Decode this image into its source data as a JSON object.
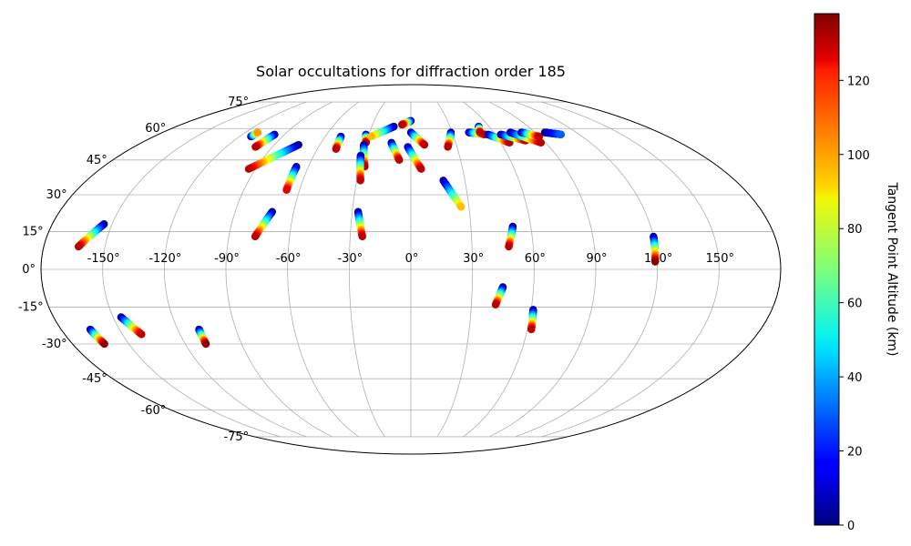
{
  "chart_data": {
    "type": "scatter",
    "projection": "mollweide",
    "title": "Solar occultations for diffraction order 185",
    "xlabel": "",
    "ylabel": "",
    "x_tick_labels": [
      "-150°",
      "-120°",
      "-90°",
      "-60°",
      "-30°",
      "0°",
      "30°",
      "60°",
      "90°",
      "120°",
      "150°"
    ],
    "y_tick_labels": [
      "-75°",
      "-60°",
      "-45°",
      "-30°",
      "-15°",
      "0°",
      "15°",
      "30°",
      "45°",
      "60°",
      "75°"
    ],
    "x_ticks": [
      -150,
      -120,
      -90,
      -60,
      -30,
      0,
      30,
      60,
      90,
      120,
      150
    ],
    "y_ticks": [
      -75,
      -60,
      -45,
      -30,
      -15,
      0,
      15,
      30,
      45,
      60,
      75
    ],
    "xlim": [
      -180,
      180
    ],
    "ylim": [
      -90,
      90
    ],
    "grid": true,
    "colormap": "jet",
    "colorbar": {
      "label": "Tangent Point Altitude (km)",
      "range": [
        0,
        138
      ],
      "tick_values": [
        0,
        20,
        40,
        60,
        80,
        100,
        120
      ],
      "tick_labels": [
        "0",
        "20",
        "40",
        "60",
        "80",
        "100",
        "120"
      ]
    },
    "note": "Each occultation: points from (lon0, lat0) at 0 km altitude to (lon1, lat1) at max_alt km",
    "occultations": [
      {
        "lon0": -154,
        "lat0": 18,
        "lon1": -163,
        "lat1": 9,
        "max_alt": 130
      },
      {
        "lon0": -146,
        "lat0": -19,
        "lon1": -140,
        "lat1": -26,
        "max_alt": 130
      },
      {
        "lon0": -165,
        "lat0": -24,
        "lon1": -163,
        "lat1": -30,
        "max_alt": 136
      },
      {
        "lon0": -109,
        "lat0": -24,
        "lon1": -109,
        "lat1": -30,
        "max_alt": 136
      },
      {
        "lon0": -97,
        "lat0": 57,
        "lon1": -101,
        "lat1": 51,
        "max_alt": 130
      },
      {
        "lon0": -74,
        "lat0": 52,
        "lon1": -94,
        "lat1": 41,
        "max_alt": 130
      },
      {
        "lon0": -67,
        "lat0": 42,
        "lon1": -67,
        "lat1": 32,
        "max_alt": 125
      },
      {
        "lon0": -71,
        "lat0": 23,
        "lon1": -77,
        "lat1": 13,
        "max_alt": 130
      },
      {
        "lon0": -49,
        "lat0": 56,
        "lon1": -48,
        "lat1": 50,
        "max_alt": 130
      },
      {
        "lon0": -32,
        "lat0": 57,
        "lon1": -30,
        "lat1": 53,
        "max_alt": 130
      },
      {
        "lon0": -31,
        "lat0": 52,
        "lon1": -27,
        "lat1": 42,
        "max_alt": 130
      },
      {
        "lon0": -31,
        "lat0": 47,
        "lon1": -28,
        "lat1": 36,
        "max_alt": 130
      },
      {
        "lon0": -27,
        "lat0": 23,
        "lon1": -24,
        "lat1": 13,
        "max_alt": 130
      },
      {
        "lon0": -13,
        "lat0": 61,
        "lon1": -28,
        "lat1": 56,
        "max_alt": 95
      },
      {
        "lon0": -13,
        "lat0": 53,
        "lon1": -7,
        "lat1": 45,
        "max_alt": 130
      },
      {
        "lon0": 0,
        "lat0": 64,
        "lon1": -7,
        "lat1": 62,
        "max_alt": 130
      },
      {
        "lon0": -2,
        "lat0": 51,
        "lon1": 6,
        "lat1": 41,
        "max_alt": 130
      },
      {
        "lon0": 0,
        "lat0": 58,
        "lon1": 9,
        "lat1": 52,
        "max_alt": 130
      },
      {
        "lon0": 18,
        "lat0": 36,
        "lon1": 26,
        "lat1": 25,
        "max_alt": 95
      },
      {
        "lon0": 29,
        "lat0": 58,
        "lon1": 24,
        "lat1": 51,
        "max_alt": 130
      },
      {
        "lon0": 42,
        "lat0": 58,
        "lon1": 53,
        "lat1": 57,
        "max_alt": 130
      },
      {
        "lon0": 52,
        "lat0": 61,
        "lon1": 50,
        "lat1": 58,
        "max_alt": 130
      },
      {
        "lon0": 55,
        "lat0": 57,
        "lon1": 66,
        "lat1": 53,
        "max_alt": 130
      },
      {
        "lon0": 64,
        "lat0": 57,
        "lon1": 78,
        "lat1": 54,
        "max_alt": 130
      },
      {
        "lon0": 72,
        "lat0": 58,
        "lon1": 87,
        "lat1": 53,
        "max_alt": 130
      },
      {
        "lon0": 80,
        "lat0": 58,
        "lon1": 90,
        "lat1": 56,
        "max_alt": 130
      },
      {
        "lon0": 97,
        "lat0": 58,
        "lon1": 107,
        "lat1": 57,
        "max_alt": 30
      },
      {
        "lon0": 51,
        "lat0": 17,
        "lon1": 48,
        "lat1": 9,
        "max_alt": 130
      },
      {
        "lon0": 45,
        "lat0": -7,
        "lon1": 42,
        "lat1": -14,
        "max_alt": 130
      },
      {
        "lon0": 61,
        "lat0": -16,
        "lon1": 62,
        "lat1": -24,
        "max_alt": 130
      },
      {
        "lon0": 120,
        "lat0": 13,
        "lon1": 119,
        "lat1": 3,
        "max_alt": 136
      },
      {
        "lon0": -112,
        "lat0": 56,
        "lon1": -111,
        "lat1": 58,
        "max_alt": 100
      }
    ]
  }
}
